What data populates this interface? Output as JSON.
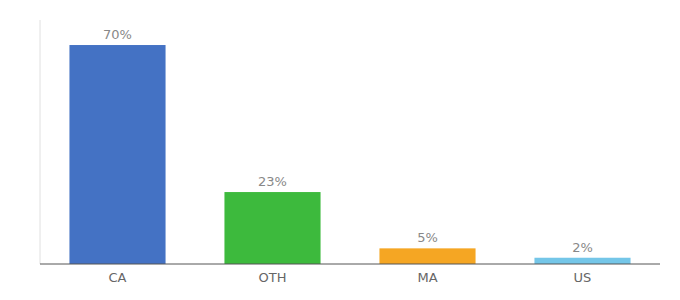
{
  "chart_data": {
    "type": "bar",
    "categories": [
      "CA",
      "OTH",
      "MA",
      "US"
    ],
    "values": [
      70,
      23,
      5,
      2
    ],
    "value_labels": [
      "70%",
      "23%",
      "5%",
      "2%"
    ],
    "colors": [
      "#4472c4",
      "#3dba3d",
      "#f5a623",
      "#74c6e8"
    ],
    "ylim": [
      0,
      78
    ],
    "data_labels": true,
    "tick_labels": "x"
  }
}
